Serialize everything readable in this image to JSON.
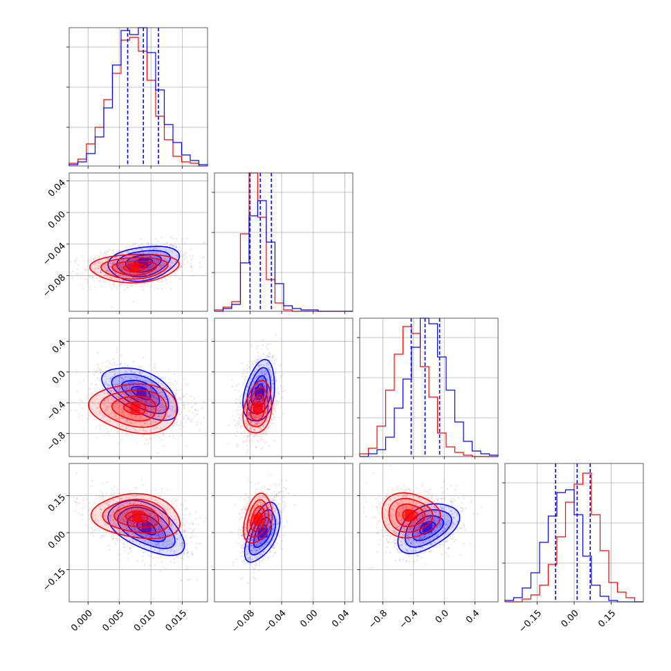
{
  "chart_data": {
    "type": "corner",
    "grid": true,
    "series_colors": {
      "red": "#ff0000",
      "blue": "#0000ff"
    },
    "params": [
      {
        "range": [
          -0.003,
          0.019
        ],
        "ticks": [
          0.0,
          0.005,
          0.01,
          0.015
        ],
        "tick_labels": [
          "0.000",
          "0.005",
          "0.010",
          "0.015"
        ]
      },
      {
        "range": [
          -0.125,
          0.05
        ],
        "ticks": [
          -0.08,
          -0.04,
          0.0,
          0.04
        ],
        "tick_labels": [
          "−0.08",
          "−0.04",
          "0.00",
          "0.04"
        ]
      },
      {
        "range": [
          -1.1,
          0.7
        ],
        "ticks": [
          -0.8,
          -0.4,
          0.0,
          0.4
        ],
        "tick_labels": [
          "−0.8",
          "−0.4",
          "0.0",
          "0.4"
        ]
      },
      {
        "range": [
          -0.28,
          0.28
        ],
        "ticks": [
          -0.15,
          0.0,
          0.15
        ],
        "tick_labels": [
          "−0.15",
          "0.00",
          "0.15"
        ]
      }
    ],
    "marginals": [
      {
        "blue": [
          0.01,
          0.03,
          0.09,
          0.21,
          0.42,
          0.73,
          0.98,
          0.95,
          1.0,
          0.82,
          0.55,
          0.3,
          0.17,
          0.08,
          0.04,
          0.01
        ],
        "red": [
          0.02,
          0.05,
          0.16,
          0.28,
          0.48,
          0.67,
          0.91,
          0.93,
          0.83,
          0.62,
          0.36,
          0.19,
          0.07,
          0.03,
          0.02,
          0.0
        ],
        "quantiles": [
          0.0063,
          0.0088,
          0.0112
        ]
      },
      {
        "blue": [
          0.0,
          0.02,
          0.05,
          0.35,
          0.69,
          0.8,
          0.5,
          0.2,
          0.04,
          0.02,
          0.01,
          0.01,
          0.0,
          0.0,
          0.0,
          0.0
        ],
        "red": [
          0.01,
          0.03,
          0.07,
          0.56,
          1.0,
          0.68,
          0.23,
          0.06,
          0.01,
          0.0,
          0.0,
          0.0,
          0.0,
          0.0,
          0.0,
          0.0
        ],
        "quantiles": [
          -0.08,
          -0.067,
          -0.053
        ]
      },
      {
        "blue": [
          0.0,
          0.02,
          0.05,
          0.14,
          0.35,
          0.56,
          0.79,
          1.0,
          0.96,
          0.72,
          0.48,
          0.25,
          0.11,
          0.04,
          0.02,
          0.01
        ],
        "red": [
          0.02,
          0.06,
          0.22,
          0.48,
          0.74,
          0.94,
          0.89,
          0.65,
          0.43,
          0.17,
          0.07,
          0.03,
          0.01,
          0.0,
          0.0,
          0.0
        ],
        "quantiles": [
          -0.43,
          -0.25,
          -0.06
        ]
      },
      {
        "blue": [
          0.01,
          0.03,
          0.1,
          0.21,
          0.43,
          0.62,
          0.79,
          0.81,
          0.63,
          0.33,
          0.12,
          0.04,
          0.01,
          0.0,
          0.0,
          0.0
        ],
        "red": [
          0.0,
          0.0,
          0.02,
          0.05,
          0.12,
          0.27,
          0.47,
          0.72,
          0.85,
          0.93,
          0.63,
          0.37,
          0.14,
          0.07,
          0.03,
          0.0
        ],
        "quantiles": [
          -0.075,
          0.012,
          0.065
        ]
      }
    ],
    "pairs": [
      {
        "i": 1,
        "j": 0,
        "blue": {
          "mean": [
            0.0088,
            -0.064
          ],
          "sd": [
            0.0028,
            0.011
          ],
          "rho": 0.25
        },
        "red": {
          "mean": [
            0.0074,
            -0.07
          ],
          "sd": [
            0.0035,
            0.009
          ],
          "rho": 0.1
        }
      },
      {
        "i": 2,
        "j": 0,
        "blue": {
          "mean": [
            0.0085,
            -0.27
          ],
          "sd": [
            0.003,
            0.17
          ],
          "rho": -0.55
        },
        "red": {
          "mean": [
            0.0075,
            -0.47
          ],
          "sd": [
            0.0035,
            0.16
          ],
          "rho": -0.1
        }
      },
      {
        "i": 2,
        "j": 1,
        "blue": {
          "mean": [
            -0.068,
            -0.26
          ],
          "sd": [
            0.01,
            0.2
          ],
          "rho": 0.3
        },
        "red": {
          "mean": [
            -0.07,
            -0.47
          ],
          "sd": [
            0.009,
            0.17
          ],
          "rho": 0.25
        }
      },
      {
        "i": 3,
        "j": 0,
        "blue": {
          "mean": [
            0.0093,
            0.02
          ],
          "sd": [
            0.003,
            0.055
          ],
          "rho": -0.5
        },
        "red": {
          "mean": [
            0.0078,
            0.065
          ],
          "sd": [
            0.0035,
            0.045
          ],
          "rho": -0.15
        }
      },
      {
        "i": 3,
        "j": 1,
        "blue": {
          "mean": [
            -0.064,
            0.0
          ],
          "sd": [
            0.011,
            0.06
          ],
          "rho": 0.55
        },
        "red": {
          "mean": [
            -0.07,
            0.055
          ],
          "sd": [
            0.009,
            0.05
          ],
          "rho": 0.3
        }
      },
      {
        "i": 3,
        "j": 2,
        "blue": {
          "mean": [
            -0.22,
            0.02
          ],
          "sd": [
            0.2,
            0.05
          ],
          "rho": 0.45
        },
        "red": {
          "mean": [
            -0.45,
            0.07
          ],
          "sd": [
            0.19,
            0.045
          ],
          "rho": -0.05
        }
      }
    ]
  }
}
